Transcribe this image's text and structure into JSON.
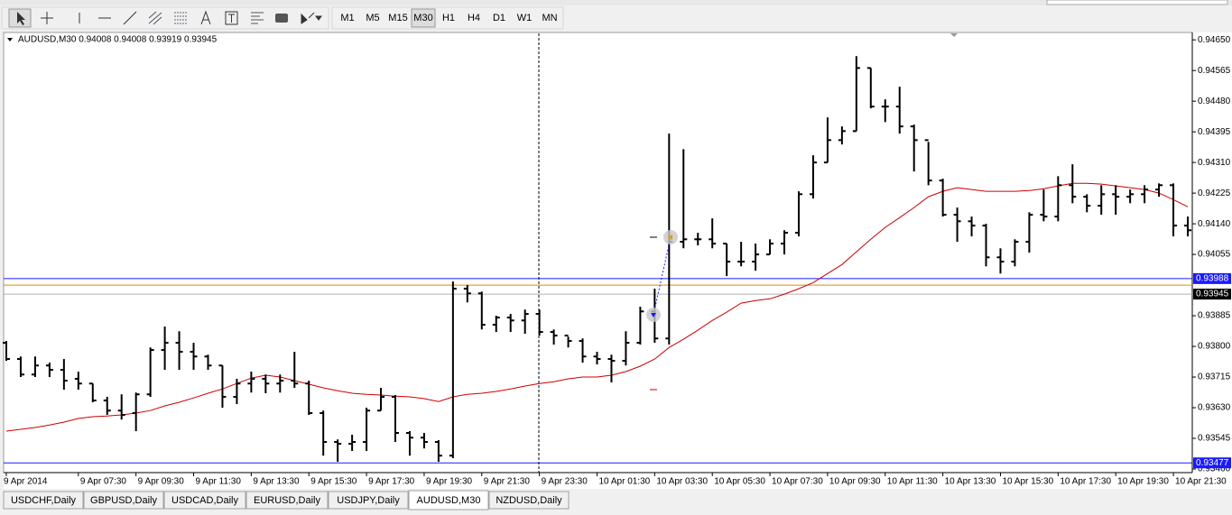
{
  "toolbar": {
    "timeframes": [
      "M1",
      "M5",
      "M15",
      "M30",
      "H1",
      "H4",
      "D1",
      "W1",
      "MN"
    ],
    "active": 3
  },
  "chart_data": {
    "type": "ohlc",
    "title": "AUDUSD,M30 0.94008 0.94008 0.93919 0.93945",
    "categories": [
      "9 Apr 2014",
      null,
      null,
      null,
      null,
      "9 Apr 07:30",
      null,
      null,
      null,
      "9 Apr 09:30",
      null,
      null,
      null,
      "9 Apr 11:30",
      null,
      null,
      null,
      "9 Apr 13:30",
      null,
      null,
      null,
      "9 Apr 15:30",
      null,
      null,
      null,
      "9 Apr 17:30",
      null,
      null,
      null,
      "9 Apr 19:30",
      null,
      null,
      null,
      "9 Apr 21:30",
      null,
      null,
      null,
      "9 Apr 23:30",
      null,
      null,
      null,
      "10 Apr 01:30",
      null,
      null,
      null,
      "10 Apr 03:30",
      null,
      null,
      null,
      "10 Apr 05:30",
      null,
      null,
      null,
      "10 Apr 07:30",
      null,
      null,
      null,
      "10 Apr 09:30",
      null,
      null,
      null,
      "10 Apr 11:30",
      null,
      null,
      null,
      "10 Apr 13:30",
      null,
      null,
      null,
      "10 Apr 15:30",
      null,
      null,
      null,
      "10 Apr 17:30",
      null,
      null,
      null,
      "10 Apr 19:30",
      null,
      null,
      null,
      "10 Apr 21:30",
      null
    ],
    "open": [
      0.9381,
      0.93765,
      0.93722,
      0.93747,
      0.93735,
      0.9371,
      0.93697,
      0.9365,
      0.93622,
      0.93615,
      0.93667,
      0.9379,
      0.9381,
      0.93785,
      0.93772,
      0.93747,
      0.9366,
      0.93697,
      0.9371,
      0.93697,
      0.93705,
      0.93697,
      0.93615,
      0.93535,
      0.9353,
      0.93535,
      0.93622,
      0.9366,
      0.9356,
      0.93547,
      0.93535,
      0.93497,
      0.9396,
      0.93947,
      0.9386,
      0.9388,
      0.93872,
      0.9389,
      0.9384,
      0.9383,
      0.93815,
      0.93772,
      0.93765,
      0.9376,
      0.9381,
      0.93897,
      0.93822,
      0.9409,
      0.94097,
      0.94097,
      0.94085,
      0.94035,
      0.94035,
      0.94055,
      0.94085,
      0.94115,
      0.94222,
      0.9431,
      0.94372,
      0.94397,
      0.94572,
      0.94465,
      0.94465,
      0.9441,
      0.94372,
      0.9426,
      0.94165,
      0.94147,
      0.94135,
      0.94047,
      0.94035,
      0.9409,
      0.94165,
      0.9416,
      0.94247,
      0.94215,
      0.9419,
      0.94222,
      0.94215,
      0.94222,
      0.94235,
      0.94247,
      0.94135
    ],
    "high": [
      0.93815,
      0.93772,
      0.93772,
      0.93755,
      0.93765,
      0.9373,
      0.93697,
      0.9366,
      0.93667,
      0.93672,
      0.93797,
      0.93855,
      0.93842,
      0.9381,
      0.93777,
      0.93747,
      0.9371,
      0.9373,
      0.93722,
      0.93722,
      0.93785,
      0.93705,
      0.93622,
      0.93542,
      0.93555,
      0.9363,
      0.93685,
      0.93665,
      0.93565,
      0.9356,
      0.9354,
      0.9398,
      0.9397,
      0.93952,
      0.93885,
      0.9389,
      0.93902,
      0.93902,
      0.93847,
      0.93827,
      0.93822,
      0.93785,
      0.93777,
      0.93842,
      0.9391,
      0.9396,
      0.9439,
      0.94347,
      0.94115,
      0.94155,
      0.94085,
      0.9409,
      0.94085,
      0.94097,
      0.94122,
      0.9423,
      0.9433,
      0.94435,
      0.9441,
      0.94605,
      0.94572,
      0.94485,
      0.9452,
      0.94415,
      0.94367,
      0.94265,
      0.94185,
      0.9416,
      0.9414,
      0.94072,
      0.94097,
      0.94172,
      0.94235,
      0.94272,
      0.94305,
      0.94222,
      0.94247,
      0.94247,
      0.94235,
      0.94247,
      0.94252,
      0.94252,
      0.9416
    ],
    "low": [
      0.9376,
      0.93715,
      0.93715,
      0.93715,
      0.9368,
      0.9368,
      0.93645,
      0.9361,
      0.93597,
      0.93565,
      0.9366,
      0.93735,
      0.93735,
      0.93735,
      0.93735,
      0.9363,
      0.9364,
      0.93672,
      0.9367,
      0.93672,
      0.93685,
      0.9361,
      0.93497,
      0.9348,
      0.9351,
      0.9351,
      0.93622,
      0.93535,
      0.93497,
      0.93517,
      0.9348,
      0.9349,
      0.93922,
      0.93847,
      0.9384,
      0.9384,
      0.93835,
      0.9383,
      0.93805,
      0.93797,
      0.93755,
      0.9375,
      0.937,
      0.93747,
      0.93805,
      0.9381,
      0.93805,
      0.94072,
      0.9408,
      0.94072,
      0.93995,
      0.94022,
      0.9401,
      0.94055,
      0.94055,
      0.94105,
      0.9421,
      0.9431,
      0.9436,
      0.94397,
      0.9446,
      0.94422,
      0.9439,
      0.94285,
      0.94247,
      0.9416,
      0.9409,
      0.94105,
      0.94022,
      0.94002,
      0.94022,
      0.9406,
      0.94147,
      0.94147,
      0.94197,
      0.94172,
      0.94165,
      0.94165,
      0.94197,
      0.94197,
      0.94215,
      0.94105,
      0.94105
    ],
    "close": [
      0.93765,
      0.93722,
      0.93747,
      0.93735,
      0.93705,
      0.93697,
      0.9365,
      0.93622,
      0.9361,
      0.93667,
      0.9379,
      0.9381,
      0.93785,
      0.93772,
      0.93747,
      0.9366,
      0.93697,
      0.9371,
      0.93697,
      0.93705,
      0.93697,
      0.93615,
      0.93535,
      0.9353,
      0.93535,
      0.93622,
      0.9366,
      0.9356,
      0.93547,
      0.93535,
      0.93497,
      0.9396,
      0.93947,
      0.9386,
      0.9388,
      0.93872,
      0.9389,
      0.9384,
      0.9383,
      0.93815,
      0.93772,
      0.93765,
      0.9376,
      0.9381,
      0.93897,
      0.93822,
      0.9409,
      0.94097,
      0.94097,
      0.94085,
      0.94035,
      0.94035,
      0.94055,
      0.94085,
      0.94115,
      0.94222,
      0.9431,
      0.94372,
      0.94397,
      0.94572,
      0.94465,
      0.94465,
      0.9441,
      0.94372,
      0.9426,
      0.94165,
      0.94147,
      0.94135,
      0.94047,
      0.94035,
      0.9409,
      0.94165,
      0.9416,
      0.94247,
      0.94215,
      0.9419,
      0.94222,
      0.94215,
      0.94222,
      0.94235,
      0.94247,
      0.94135,
      0.94122
    ],
    "bar_color": "#000000",
    "moving_average": {
      "color": "#cc0000",
      "values": [
        0.93565,
        0.9357,
        0.93575,
        0.93582,
        0.9359,
        0.936,
        0.93605,
        0.93607,
        0.9361,
        0.93615,
        0.93622,
        0.93635,
        0.93645,
        0.93657,
        0.9367,
        0.93682,
        0.93697,
        0.93712,
        0.9372,
        0.93715,
        0.93705,
        0.93695,
        0.93685,
        0.93677,
        0.9367,
        0.93667,
        0.93665,
        0.93662,
        0.9366,
        0.93655,
        0.93647,
        0.9366,
        0.93667,
        0.9367,
        0.93675,
        0.93682,
        0.9369,
        0.93697,
        0.93702,
        0.9371,
        0.93715,
        0.93715,
        0.9372,
        0.9373,
        0.93745,
        0.93765,
        0.93797,
        0.9382,
        0.93845,
        0.93872,
        0.93895,
        0.9392,
        0.93927,
        0.93932,
        0.93945,
        0.9396,
        0.93977,
        0.94002,
        0.94027,
        0.94062,
        0.94097,
        0.9413,
        0.94157,
        0.94185,
        0.94215,
        0.9423,
        0.9424,
        0.94235,
        0.9423,
        0.9423,
        0.9423,
        0.94232,
        0.94237,
        0.94245,
        0.94252,
        0.94252,
        0.9425,
        0.94245,
        0.9424,
        0.94235,
        0.94225,
        0.94207,
        0.94187
      ]
    },
    "price_lines": [
      {
        "value": 0.93988,
        "color": "#1a1aff"
      },
      {
        "value": 0.93945,
        "color": "#000000"
      },
      {
        "value": 0.93477,
        "color": "#1a1aff"
      }
    ],
    "extra_lines": [
      {
        "value": 0.9397,
        "color": "#e08a00"
      }
    ],
    "ylim": [
      0.9345,
      0.94668
    ],
    "yticks": [
      {
        "value": 0.9465,
        "label": "0.94650"
      },
      0.94565,
      {
        "value": 0.9448,
        "label": "0.94480"
      },
      0.94395,
      {
        "value": 0.9431,
        "label": "0.94310"
      },
      0.94225,
      {
        "value": 0.9414,
        "label": "0.94140"
      },
      0.94055,
      0.93885,
      {
        "value": 0.938,
        "label": "0.93800"
      },
      0.93715,
      {
        "value": 0.9363,
        "label": "0.93630"
      },
      0.93545,
      {
        "value": 0.9346,
        "label": "0.93460"
      }
    ]
  },
  "tabs": {
    "items": [
      "USDCHF,Daily",
      "GBPUSD,Daily",
      "USDCAD,Daily",
      "EURUSD,Daily",
      "USDJPY,Daily",
      "AUDUSD,M30",
      "NZDUSD,Daily"
    ],
    "active": 5
  }
}
